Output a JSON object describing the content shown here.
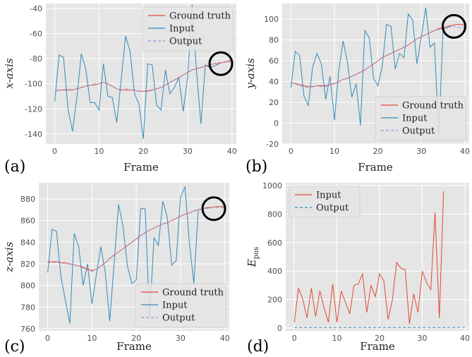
{
  "colors": {
    "ground_truth": "#e24a33",
    "input": "#348abd",
    "output": "#988ed5",
    "epos_output": "#348abd"
  },
  "chart_data": [
    {
      "type": "line",
      "panel_label": "(a)",
      "xlabel": "Frame",
      "ylabel": "x-axis",
      "xlim": [
        -2,
        41
      ],
      "ylim": [
        -148,
        -36
      ],
      "xticks": [
        0,
        10,
        20,
        30,
        40
      ],
      "yticks": [
        -140,
        -120,
        -100,
        -80,
        -60,
        -40
      ],
      "legend_position": "top-right",
      "circle_highlight": {
        "x": 37.5,
        "y": -84
      },
      "series": [
        {
          "name": "Ground truth",
          "style": "solid",
          "color_key": "ground_truth",
          "x": [
            0,
            1,
            2,
            3,
            4,
            5,
            6,
            7,
            8,
            9,
            10,
            11,
            12,
            13,
            14,
            15,
            16,
            17,
            18,
            19,
            20,
            21,
            22,
            23,
            24,
            25,
            26,
            27,
            28,
            29,
            30,
            31,
            32,
            33,
            34,
            35,
            36,
            37,
            38,
            39,
            40
          ],
          "y": [
            -106,
            -105,
            -105,
            -105,
            -105,
            -104,
            -103,
            -102,
            -101,
            -101,
            -100,
            -99,
            -100,
            -102,
            -104,
            -105,
            -105,
            -105,
            -105,
            -106,
            -106,
            -106,
            -105,
            -104,
            -103,
            -101,
            -99,
            -97,
            -95,
            -93,
            -91,
            -89,
            -88,
            -87,
            -86,
            -85,
            -84,
            -84,
            -83,
            -82,
            -81
          ]
        },
        {
          "name": "Input",
          "style": "solid",
          "color_key": "input",
          "x": [
            0,
            1,
            2,
            3,
            4,
            5,
            6,
            7,
            8,
            9,
            10,
            11,
            12,
            13,
            14,
            15,
            16,
            17,
            18,
            19,
            20,
            21,
            22,
            23,
            24,
            25,
            26,
            27,
            28,
            29,
            30,
            31,
            32,
            33,
            34,
            35,
            36,
            37
          ],
          "y": [
            -114,
            -77,
            -79,
            -120,
            -138,
            -111,
            -76,
            -88,
            -115,
            -115,
            -121,
            -84,
            -110,
            -111,
            -131,
            -97,
            -62,
            -74,
            -108,
            -116,
            -144,
            -84,
            -85,
            -117,
            -121,
            -89,
            -108,
            -103,
            -95,
            -122,
            -95,
            -37,
            -90,
            -132,
            -85,
            -87,
            -86,
            -84
          ]
        },
        {
          "name": "Output",
          "style": "dashed",
          "color_key": "output",
          "x": [
            0,
            1,
            2,
            3,
            4,
            5,
            6,
            7,
            8,
            9,
            10,
            11,
            12,
            13,
            14,
            15,
            16,
            17,
            18,
            19,
            20,
            21,
            22,
            23,
            24,
            25,
            26,
            27,
            28,
            29,
            30,
            31,
            32,
            33,
            34,
            35,
            36,
            37,
            38,
            39,
            40
          ],
          "y": [
            -106,
            -105,
            -105,
            -104,
            -105,
            -104,
            -103,
            -102,
            -101,
            -100,
            -100,
            -99,
            -100,
            -102,
            -104,
            -105,
            -104,
            -105,
            -105,
            -106,
            -106,
            -105,
            -105,
            -104,
            -103,
            -101,
            -99,
            -97,
            -95,
            -93,
            -91,
            -89,
            -88,
            -87,
            -86,
            -85,
            -84,
            -83,
            -83,
            -83,
            -82
          ]
        }
      ]
    },
    {
      "type": "line",
      "panel_label": "(b)",
      "xlabel": "Frame",
      "ylabel": "y-axis",
      "xlim": [
        -2,
        41
      ],
      "ylim": [
        -20,
        115
      ],
      "xticks": [
        0,
        10,
        20,
        30,
        40
      ],
      "yticks": [
        -20,
        0,
        20,
        40,
        60,
        80,
        100
      ],
      "legend_position": "bottom-right",
      "circle_highlight": {
        "x": 37.5,
        "y": 93
      },
      "series": [
        {
          "name": "Ground truth",
          "style": "solid",
          "color_key": "ground_truth",
          "x": [
            0,
            1,
            2,
            3,
            4,
            5,
            6,
            7,
            8,
            9,
            10,
            11,
            12,
            13,
            14,
            15,
            16,
            17,
            18,
            19,
            20,
            21,
            22,
            23,
            24,
            25,
            26,
            27,
            28,
            29,
            30,
            31,
            32,
            33,
            34,
            35,
            36,
            37,
            38,
            39,
            40
          ],
          "y": [
            39,
            38,
            37,
            36,
            35,
            35,
            36,
            36,
            36,
            37,
            38,
            40,
            42,
            43,
            45,
            47,
            49,
            51,
            54,
            57,
            60,
            63,
            65,
            67,
            69,
            71,
            73,
            75,
            78,
            81,
            83,
            85,
            87,
            89,
            91,
            92,
            93,
            94,
            95,
            95,
            94
          ]
        },
        {
          "name": "Input",
          "style": "solid",
          "color_key": "input",
          "x": [
            0,
            1,
            2,
            3,
            4,
            5,
            6,
            7,
            8,
            9,
            10,
            11,
            12,
            13,
            14,
            15,
            16,
            17,
            18,
            19,
            20,
            21,
            22,
            23,
            24,
            25,
            26,
            27,
            28,
            29,
            30,
            31,
            32,
            33,
            34,
            35,
            36,
            37
          ],
          "y": [
            34,
            69,
            65,
            26,
            17,
            54,
            67,
            57,
            23,
            45,
            3,
            50,
            79,
            59,
            25,
            38,
            -2,
            89,
            82,
            43,
            36,
            54,
            95,
            93,
            52,
            67,
            63,
            105,
            99,
            57,
            83,
            111,
            73,
            77,
            -12,
            90,
            92,
            94
          ]
        },
        {
          "name": "Output",
          "style": "dashed",
          "color_key": "output",
          "x": [
            0,
            1,
            2,
            3,
            4,
            5,
            6,
            7,
            8,
            9,
            10,
            11,
            12,
            13,
            14,
            15,
            16,
            17,
            18,
            19,
            20,
            21,
            22,
            23,
            24,
            25,
            26,
            27,
            28,
            29,
            30,
            31,
            32,
            33,
            34,
            35,
            36,
            37,
            38,
            39,
            40
          ],
          "y": [
            39,
            38,
            36,
            35,
            34,
            35,
            36,
            35,
            35,
            37,
            38,
            40,
            42,
            43,
            45,
            47,
            49,
            51,
            54,
            57,
            60,
            63,
            65,
            67,
            69,
            71,
            73,
            75,
            78,
            81,
            83,
            85,
            87,
            89,
            90,
            91,
            92,
            93,
            93,
            92,
            92
          ]
        }
      ]
    },
    {
      "type": "line",
      "panel_label": "(c)",
      "xlabel": "Frame",
      "ylabel": "z-axis",
      "xlim": [
        -2,
        41
      ],
      "ylim": [
        758,
        895
      ],
      "xticks": [
        0,
        10,
        20,
        30,
        40
      ],
      "yticks": [
        760,
        780,
        800,
        820,
        840,
        860,
        880
      ],
      "legend_position": "bottom-right",
      "circle_highlight": {
        "x": 37.5,
        "y": 871
      },
      "series": [
        {
          "name": "Ground truth",
          "style": "solid",
          "color_key": "ground_truth",
          "x": [
            0,
            1,
            2,
            3,
            4,
            5,
            6,
            7,
            8,
            9,
            10,
            11,
            12,
            13,
            14,
            15,
            16,
            17,
            18,
            19,
            20,
            21,
            22,
            23,
            24,
            25,
            26,
            27,
            28,
            29,
            30,
            31,
            32,
            33,
            34,
            35,
            36,
            37,
            38,
            39,
            40
          ],
          "y": [
            822,
            822,
            822,
            821,
            821,
            820,
            819,
            818,
            817,
            815,
            814,
            815,
            818,
            821,
            825,
            828,
            831,
            834,
            837,
            840,
            843,
            846,
            849,
            851,
            853,
            855,
            857,
            858,
            860,
            862,
            864,
            866,
            867,
            869,
            870,
            871,
            872,
            872,
            873,
            873,
            873
          ]
        },
        {
          "name": "Input",
          "style": "solid",
          "color_key": "input",
          "x": [
            0,
            1,
            2,
            3,
            4,
            5,
            6,
            7,
            8,
            9,
            10,
            11,
            12,
            13,
            14,
            15,
            16,
            17,
            18,
            19,
            20,
            21,
            22,
            23,
            24,
            25,
            26,
            27,
            28,
            29,
            30,
            31,
            32,
            33,
            34,
            35,
            36,
            37
          ],
          "y": [
            812,
            852,
            850,
            808,
            786,
            765,
            848,
            836,
            800,
            820,
            783,
            810,
            836,
            812,
            767,
            820,
            875,
            855,
            818,
            802,
            805,
            871,
            871,
            770,
            844,
            837,
            878,
            863,
            819,
            823,
            882,
            891,
            839,
            802,
            870,
            871,
            872,
            872
          ]
        },
        {
          "name": "Output",
          "style": "dashed",
          "color_key": "output",
          "x": [
            0,
            1,
            2,
            3,
            4,
            5,
            6,
            7,
            8,
            9,
            10,
            11,
            12,
            13,
            14,
            15,
            16,
            17,
            18,
            19,
            20,
            21,
            22,
            23,
            24,
            25,
            26,
            27,
            28,
            29,
            30,
            31,
            32,
            33,
            34,
            35,
            36,
            37,
            38,
            39,
            40
          ],
          "y": [
            821,
            821,
            821,
            821,
            820,
            820,
            819,
            818,
            816,
            814,
            813,
            815,
            818,
            821,
            825,
            828,
            831,
            834,
            837,
            840,
            843,
            846,
            849,
            851,
            853,
            855,
            857,
            858,
            860,
            862,
            864,
            866,
            867,
            869,
            870,
            871,
            871,
            872,
            872,
            872,
            872
          ]
        }
      ]
    },
    {
      "type": "line",
      "panel_label": "(d)",
      "xlabel": "Frame",
      "ylabel": "E",
      "ylabel_subscript": "pos",
      "xlim": [
        -2,
        41
      ],
      "ylim": [
        -20,
        1020
      ],
      "xticks": [
        0,
        10,
        20,
        30,
        40
      ],
      "yticks": [
        0,
        200,
        400,
        600,
        800,
        1000
      ],
      "legend_position": "top-left",
      "series": [
        {
          "name": "Input",
          "style": "solid",
          "color_key": "ground_truth",
          "x": [
            0,
            1,
            2,
            3,
            4,
            5,
            6,
            7,
            8,
            9,
            10,
            11,
            12,
            13,
            14,
            15,
            16,
            17,
            18,
            19,
            20,
            21,
            22,
            23,
            24,
            25,
            26,
            27,
            28,
            29,
            30,
            31,
            32,
            33,
            34,
            35
          ],
          "y": [
            40,
            280,
            200,
            70,
            280,
            80,
            260,
            140,
            40,
            310,
            40,
            260,
            180,
            100,
            300,
            310,
            380,
            110,
            300,
            220,
            380,
            330,
            60,
            200,
            460,
            420,
            410,
            30,
            240,
            110,
            400,
            320,
            270,
            810,
            70,
            960
          ]
        },
        {
          "name": "Output",
          "style": "dashed",
          "color_key": "epos_output",
          "x": [
            0,
            5,
            10,
            15,
            20,
            25,
            30,
            35,
            40
          ],
          "y": [
            3,
            3,
            3,
            3,
            3,
            3,
            3,
            3,
            6
          ]
        }
      ]
    }
  ]
}
